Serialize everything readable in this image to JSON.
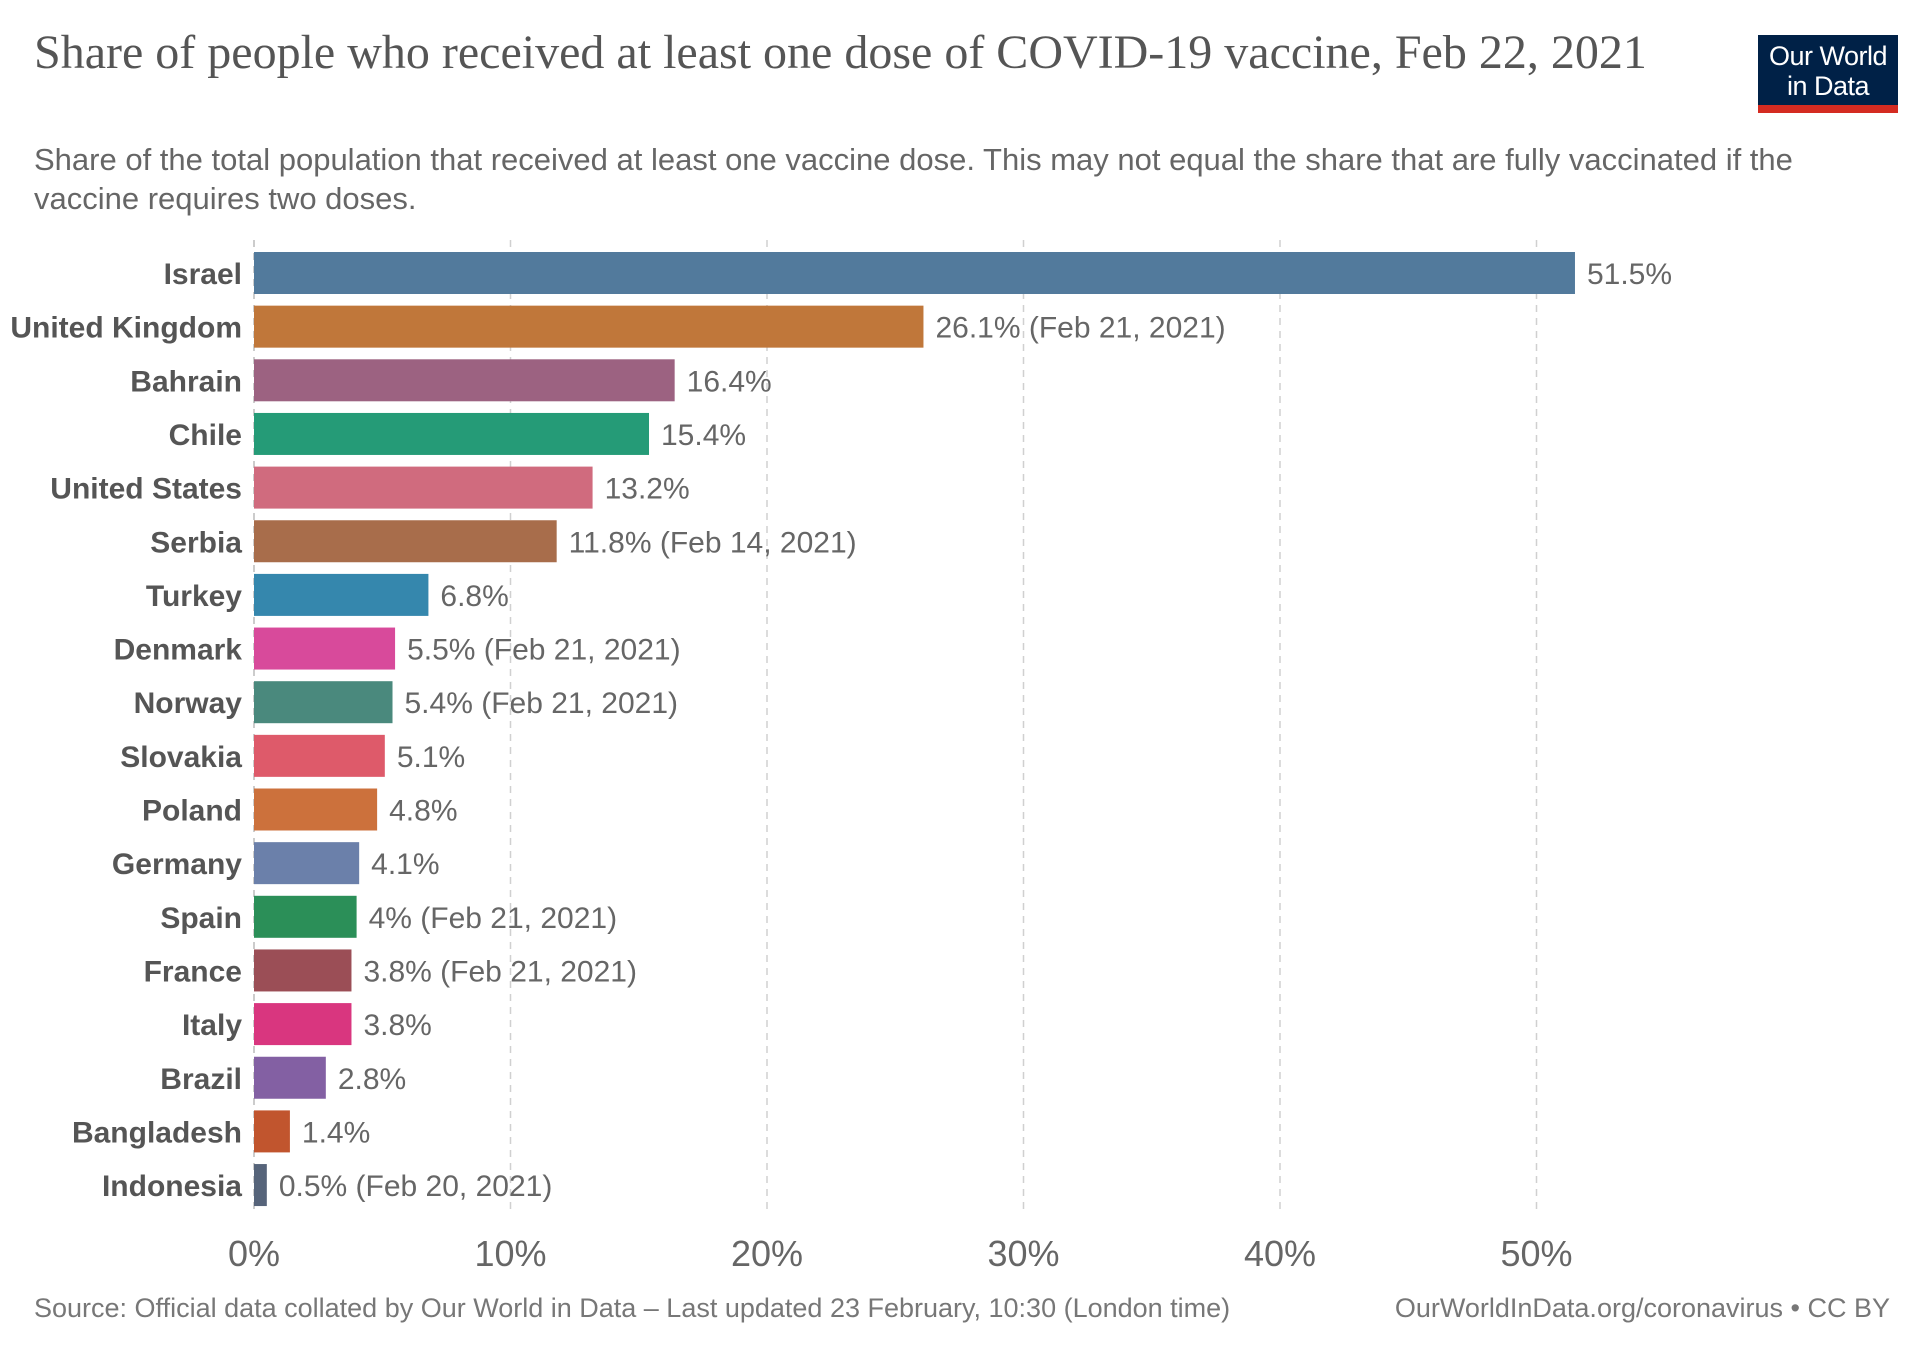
{
  "title": "Share of people who received at least one dose of COVID-19 vaccine, Feb 22, 2021",
  "subtitle": "Share of the total population that received at least one vaccine dose. This may not equal the share that are fully vaccinated if the vaccine requires two doses.",
  "logo": {
    "line1": "Our World",
    "line2": "in Data"
  },
  "footer": {
    "source": "Source: Official data collated by Our World in Data – Last updated 23 February, 10:30 (London time)",
    "link": "OurWorldInData.org/coronavirus • CC BY"
  },
  "chart_data": {
    "type": "bar",
    "orientation": "horizontal",
    "xlim": [
      0,
      55
    ],
    "grid": "vertical dashed",
    "x_ticks": [
      "0%",
      "10%",
      "20%",
      "30%",
      "40%",
      "50%"
    ],
    "x_tick_values": [
      0,
      10,
      20,
      30,
      40,
      50
    ],
    "categories": [
      "Israel",
      "United Kingdom",
      "Bahrain",
      "Chile",
      "United States",
      "Serbia",
      "Turkey",
      "Denmark",
      "Norway",
      "Slovakia",
      "Poland",
      "Germany",
      "Spain",
      "France",
      "Italy",
      "Brazil",
      "Bangladesh",
      "Indonesia"
    ],
    "values": [
      51.5,
      26.1,
      16.4,
      15.4,
      13.2,
      11.8,
      6.8,
      5.5,
      5.4,
      5.1,
      4.8,
      4.1,
      4.0,
      3.8,
      3.8,
      2.8,
      1.4,
      0.5
    ],
    "labels": [
      "51.5%",
      "26.1% (Feb 21, 2021)",
      "16.4%",
      "15.4%",
      "13.2%",
      "11.8% (Feb 14, 2021)",
      "6.8%",
      "5.5% (Feb 21, 2021)",
      "5.4% (Feb 21, 2021)",
      "5.1%",
      "4.8%",
      "4.1%",
      "4% (Feb 21, 2021)",
      "3.8% (Feb 21, 2021)",
      "3.8%",
      "2.8%",
      "1.4%",
      "0.5% (Feb 20, 2021)"
    ],
    "colors": [
      "#527a9c",
      "#c0773a",
      "#9c6281",
      "#259b77",
      "#d06b7e",
      "#a86d4b",
      "#3587ad",
      "#d84a9b",
      "#4a897d",
      "#de5a6a",
      "#cc713c",
      "#6b80aa",
      "#2b8f58",
      "#9b4e56",
      "#d9367f",
      "#8360a3",
      "#c1552e",
      "#56647a"
    ]
  }
}
